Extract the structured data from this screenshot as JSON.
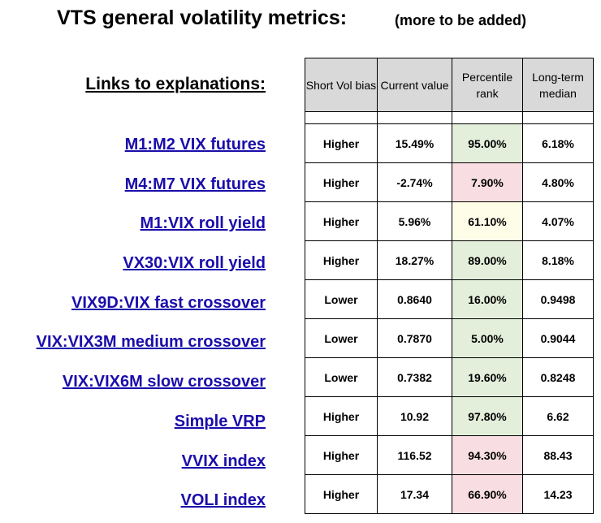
{
  "title": "VTS general volatility metrics:",
  "subtitle": "(more to be added)",
  "links_heading": "Links to explanations:",
  "headers": {
    "short_vol_bias": "Short Vol bias",
    "current_value": "Current value",
    "percentile_rank": "Percentile rank",
    "long_term_median": "Long-term median"
  },
  "colors": {
    "green": "#e3efdb",
    "red": "#f8dee2",
    "yellow": "#fdfde8",
    "header_bg": "#d9d9d9",
    "link": "#1a0dab"
  },
  "rows": [
    {
      "label": "M1:M2 VIX futures",
      "bias": "Higher",
      "current": "15.49%",
      "percentile": "95.00%",
      "percentile_tint": "green",
      "median": "6.18%"
    },
    {
      "label": "M4:M7 VIX futures",
      "bias": "Higher",
      "current": "-2.74%",
      "percentile": "7.90%",
      "percentile_tint": "red",
      "median": "4.80%"
    },
    {
      "label": "M1:VIX roll yield",
      "bias": "Higher",
      "current": "5.96%",
      "percentile": "61.10%",
      "percentile_tint": "yellow",
      "median": "4.07%"
    },
    {
      "label": "VX30:VIX roll yield",
      "bias": "Higher",
      "current": "18.27%",
      "percentile": "89.00%",
      "percentile_tint": "green",
      "median": "8.18%"
    },
    {
      "label": "VIX9D:VIX fast crossover",
      "bias": "Lower",
      "current": "0.8640",
      "percentile": "16.00%",
      "percentile_tint": "green",
      "median": "0.9498"
    },
    {
      "label": "VIX:VIX3M medium crossover",
      "bias": "Lower",
      "current": "0.7870",
      "percentile": "5.00%",
      "percentile_tint": "green",
      "median": "0.9044"
    },
    {
      "label": "VIX:VIX6M slow crossover",
      "bias": "Lower",
      "current": "0.7382",
      "percentile": "19.60%",
      "percentile_tint": "green",
      "median": "0.8248"
    },
    {
      "label": "Simple VRP",
      "bias": "Higher",
      "current": "10.92",
      "percentile": "97.80%",
      "percentile_tint": "green",
      "median": "6.62"
    },
    {
      "label": "VVIX index",
      "bias": "Higher",
      "current": "116.52",
      "percentile": "94.30%",
      "percentile_tint": "red",
      "median": "88.43"
    },
    {
      "label": "VOLI index",
      "bias": "Higher",
      "current": "17.34",
      "percentile": "66.90%",
      "percentile_tint": "red",
      "median": "14.23"
    }
  ]
}
